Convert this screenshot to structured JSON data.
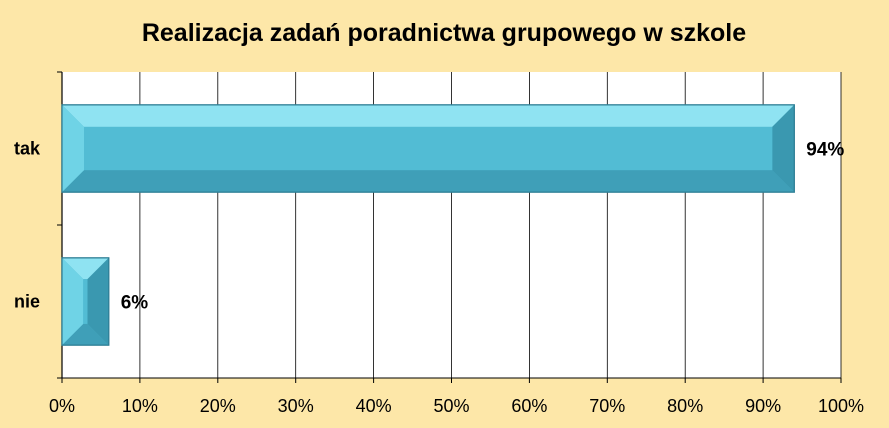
{
  "chart_data": {
    "type": "bar",
    "orientation": "horizontal",
    "title": "Realizacja zadań poradnictwa grupowego w szkole",
    "categories": [
      "tak",
      "nie"
    ],
    "values": [
      94,
      6
    ],
    "data_labels": [
      "94%",
      "6%"
    ],
    "xlim": [
      0,
      100
    ],
    "xticks": [
      "0%",
      "10%",
      "20%",
      "30%",
      "40%",
      "50%",
      "60%",
      "70%",
      "80%",
      "90%",
      "100%"
    ],
    "xlabel": "",
    "ylabel": "",
    "grid": "vertical",
    "legend": "none",
    "colors": {
      "background": "#fde7a8",
      "plot_area": "#ffffff",
      "bar": "#52bcd4",
      "bar_light": "#8fe3f2",
      "bar_dark": "#2f8ea6",
      "grid": "#000000"
    }
  }
}
